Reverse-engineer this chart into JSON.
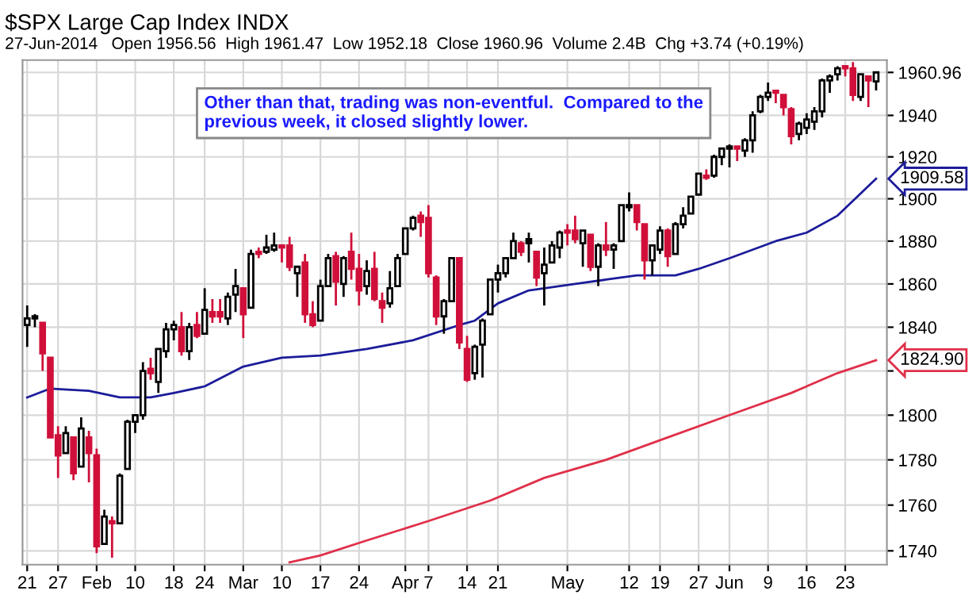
{
  "chart_data": {
    "type": "candlestick",
    "title": "$SPX Large Cap Index INDX",
    "subtitle": "27-Jun-2014   Open 1956.56  High 1961.47  Low 1952.18  Close 1960.96  Volume 2.4B  Chg +3.74 (+0.19%)",
    "categories": [
      "21",
      null,
      null,
      null,
      "27",
      null,
      null,
      null,
      null,
      "Feb",
      null,
      null,
      null,
      null,
      "10",
      null,
      null,
      null,
      null,
      "18",
      null,
      null,
      null,
      "24",
      null,
      null,
      null,
      null,
      "Mar",
      null,
      null,
      null,
      null,
      "10",
      null,
      null,
      null,
      null,
      "17",
      null,
      null,
      null,
      null,
      "24",
      null,
      null,
      null,
      null,
      null,
      "Apr",
      null,
      null,
      "7",
      null,
      null,
      null,
      null,
      "14",
      null,
      null,
      null,
      "21",
      null,
      null,
      null,
      null,
      null,
      null,
      null,
      null,
      "May",
      null,
      null,
      null,
      null,
      null,
      null,
      null,
      "12",
      null,
      null,
      null,
      "19",
      null,
      null,
      null,
      null,
      "27",
      null,
      null,
      null,
      "Jun",
      null,
      null,
      null,
      null,
      "9",
      null,
      null,
      null,
      null,
      "16",
      null,
      null,
      null,
      null,
      "23",
      null,
      null,
      null,
      null
    ],
    "ohlc": [
      [
        1841,
        1850,
        1831,
        1844
      ],
      [
        1844,
        1846,
        1840,
        1845
      ],
      [
        1842,
        1842,
        1820,
        1828
      ],
      [
        1826,
        1826,
        1790,
        1790
      ],
      [
        1791,
        1795,
        1772,
        1782
      ],
      [
        1783,
        1795,
        1783,
        1792
      ],
      [
        1790,
        1790,
        1771,
        1774
      ],
      [
        1777,
        1799,
        1777,
        1794
      ],
      [
        1790,
        1793,
        1770,
        1783
      ],
      [
        1782,
        1785,
        1739,
        1742
      ],
      [
        1743,
        1758,
        1743,
        1755
      ],
      [
        1753,
        1755,
        1737,
        1752
      ],
      [
        1752,
        1774,
        1752,
        1773
      ],
      [
        1776,
        1798,
        1776,
        1797
      ],
      [
        1797,
        1800,
        1792,
        1800
      ],
      [
        1800,
        1824,
        1798,
        1820
      ],
      [
        1821,
        1826,
        1816,
        1819
      ],
      [
        1815,
        1830,
        1810,
        1830
      ],
      [
        1829,
        1842,
        1826,
        1839
      ],
      [
        1839,
        1843,
        1834,
        1841
      ],
      [
        1840,
        1847,
        1827,
        1829
      ],
      [
        1829,
        1842,
        1825,
        1840
      ],
      [
        1841,
        1847,
        1835,
        1836
      ],
      [
        1837,
        1858,
        1837,
        1848
      ],
      [
        1847,
        1853,
        1842,
        1845
      ],
      [
        1847,
        1853,
        1842,
        1845
      ],
      [
        1844,
        1856,
        1841,
        1854
      ],
      [
        1855,
        1867,
        1847,
        1859
      ],
      [
        1858,
        1858,
        1835,
        1846
      ],
      [
        1849,
        1876,
        1849,
        1874
      ],
      [
        1875,
        1877,
        1872,
        1874
      ],
      [
        1875,
        1883,
        1874,
        1877
      ],
      [
        1876,
        1884,
        1875,
        1878
      ],
      [
        1878,
        1878,
        1870,
        1877
      ],
      [
        1878,
        1882,
        1866,
        1868
      ],
      [
        1865,
        1868,
        1854,
        1868
      ],
      [
        1870,
        1874,
        1842,
        1846
      ],
      [
        1846,
        1852,
        1840,
        1841
      ],
      [
        1843,
        1862,
        1843,
        1859
      ],
      [
        1859,
        1874,
        1859,
        1872
      ],
      [
        1873,
        1875,
        1850,
        1861
      ],
      [
        1860,
        1873,
        1854,
        1872
      ],
      [
        1875,
        1884,
        1862,
        1867
      ],
      [
        1867,
        1874,
        1850,
        1857
      ],
      [
        1859,
        1871,
        1855,
        1866
      ],
      [
        1867,
        1875,
        1852,
        1853
      ],
      [
        1852,
        1856,
        1842,
        1849
      ],
      [
        1851,
        1866,
        1849,
        1858
      ],
      [
        1859,
        1874,
        1859,
        1872
      ],
      [
        1874,
        1886,
        1874,
        1886
      ],
      [
        1886,
        1892,
        1885,
        1891
      ],
      [
        1892,
        1894,
        1882,
        1889
      ],
      [
        1891,
        1897,
        1863,
        1865
      ],
      [
        1863,
        1864,
        1841,
        1845
      ],
      [
        1845,
        1853,
        1837,
        1852
      ],
      [
        1852,
        1872,
        1852,
        1872
      ],
      [
        1872,
        1872,
        1830,
        1833
      ],
      [
        1830,
        1836,
        1815,
        1816
      ],
      [
        1819,
        1832,
        1816,
        1831
      ],
      [
        1832,
        1844,
        1817,
        1843
      ],
      [
        1846,
        1862,
        1846,
        1862
      ],
      [
        1862,
        1869,
        1856,
        1865
      ],
      [
        1865,
        1872,
        1863,
        1872
      ],
      [
        1872,
        1884,
        1872,
        1880
      ],
      [
        1879,
        1880,
        1873,
        1875
      ],
      [
        1881,
        1884,
        1870,
        1879
      ],
      [
        1875,
        1875,
        1859,
        1863
      ],
      [
        1865,
        1877,
        1850,
        1869
      ],
      [
        1870,
        1880,
        1870,
        1878
      ],
      [
        1877,
        1885,
        1872,
        1884
      ],
      [
        1885,
        1888,
        1878,
        1884
      ],
      [
        1885,
        1892,
        1879,
        1881
      ],
      [
        1879,
        1885,
        1868,
        1885
      ],
      [
        1883,
        1883,
        1866,
        1868
      ],
      [
        1868,
        1879,
        1859,
        1878
      ],
      [
        1878,
        1889,
        1873,
        1876
      ],
      [
        1876,
        1879,
        1867,
        1878
      ],
      [
        1880,
        1897,
        1880,
        1897
      ],
      [
        1896,
        1903,
        1894,
        1897
      ],
      [
        1897,
        1897,
        1885,
        1889
      ],
      [
        1888,
        1888,
        1862,
        1871
      ],
      [
        1871,
        1878,
        1864,
        1878
      ],
      [
        1876,
        1887,
        1874,
        1885
      ],
      [
        1885,
        1886,
        1868,
        1873
      ],
      [
        1874,
        1889,
        1874,
        1888
      ],
      [
        1888,
        1896,
        1886,
        1892
      ],
      [
        1893,
        1901,
        1893,
        1901
      ],
      [
        1902,
        1912,
        1902,
        1912
      ],
      [
        1911,
        1914,
        1909,
        1910
      ],
      [
        1911,
        1921,
        1910,
        1920
      ],
      [
        1920,
        1924,
        1916,
        1924
      ],
      [
        1924,
        1926,
        1915,
        1925
      ],
      [
        1925,
        1925,
        1918,
        1924
      ],
      [
        1923,
        1929,
        1920,
        1928
      ],
      [
        1928,
        1942,
        1922,
        1940
      ],
      [
        1942,
        1950,
        1941,
        1949
      ],
      [
        1949,
        1956,
        1947,
        1951
      ],
      [
        1952,
        1952,
        1946,
        1951
      ],
      [
        1950,
        1950,
        1940,
        1944
      ],
      [
        1943,
        1944,
        1926,
        1930
      ],
      [
        1931,
        1937,
        1928,
        1936
      ],
      [
        1934,
        1941,
        1931,
        1938
      ],
      [
        1937,
        1944,
        1933,
        1942
      ],
      [
        1942,
        1958,
        1939,
        1957
      ],
      [
        1957,
        1960,
        1951,
        1959
      ],
      [
        1960,
        1964,
        1957,
        1963
      ],
      [
        1964,
        1964,
        1959,
        1963
      ],
      [
        1963,
        1966,
        1947,
        1950
      ],
      [
        1949,
        1960,
        1947,
        1960
      ],
      [
        1959,
        1959,
        1944,
        1957
      ],
      [
        1956.56,
        1961.47,
        1952.18,
        1960.96
      ]
    ],
    "colors": [
      "#ffffff",
      "#ffffff",
      "#d0103a",
      "#d0103a",
      "#d0103a",
      "#ffffff",
      "#d0103a",
      "#ffffff",
      "#d0103a",
      "#d0103a",
      "#ffffff",
      "#d0103a",
      "#ffffff",
      "#ffffff",
      "#ffffff",
      "#ffffff",
      "#d0103a",
      "#ffffff",
      "#ffffff",
      "#ffffff",
      "#d0103a",
      "#ffffff",
      "#d0103a",
      "#ffffff",
      "#d0103a",
      "#d0103a",
      "#ffffff",
      "#ffffff",
      "#d0103a",
      "#ffffff",
      "#d0103a",
      "#ffffff",
      "#ffffff",
      "#d0103a",
      "#d0103a",
      "#ffffff",
      "#d0103a",
      "#d0103a",
      "#ffffff",
      "#ffffff",
      "#d0103a",
      "#ffffff",
      "#d0103a",
      "#d0103a",
      "#ffffff",
      "#d0103a",
      "#d0103a",
      "#ffffff",
      "#ffffff",
      "#ffffff",
      "#ffffff",
      "#d0103a",
      "#d0103a",
      "#d0103a",
      "#ffffff",
      "#ffffff",
      "#d0103a",
      "#d0103a",
      "#ffffff",
      "#ffffff",
      "#ffffff",
      "#ffffff",
      "#ffffff",
      "#ffffff",
      "#d0103a",
      "#000000",
      "#d0103a",
      "#ffffff",
      "#ffffff",
      "#ffffff",
      "#d0103a",
      "#d0103a",
      "#ffffff",
      "#d0103a",
      "#ffffff",
      "#d0103a",
      "#ffffff",
      "#ffffff",
      "#ffffff",
      "#d0103a",
      "#d0103a",
      "#ffffff",
      "#ffffff",
      "#d0103a",
      "#ffffff",
      "#ffffff",
      "#ffffff",
      "#ffffff",
      "#d0103a",
      "#ffffff",
      "#ffffff",
      "#ffffff",
      "#d0103a",
      "#ffffff",
      "#ffffff",
      "#ffffff",
      "#ffffff",
      "#d0103a",
      "#d0103a",
      "#d0103a",
      "#ffffff",
      "#ffffff",
      "#ffffff",
      "#ffffff",
      "#ffffff",
      "#ffffff",
      "#d0103a",
      "#d0103a",
      "#ffffff",
      "#d0103a",
      "#ffffff"
    ],
    "series": [
      {
        "type": "line",
        "color": "#1c1c9a",
        "values": [
          1808,
          null,
          null,
          1812,
          null,
          null,
          null,
          null,
          1811,
          null,
          null,
          null,
          1808,
          null,
          null,
          null,
          1808,
          null,
          null,
          1810,
          null,
          null,
          null,
          1813,
          null,
          null,
          null,
          null,
          1822,
          null,
          null,
          null,
          null,
          1826,
          null,
          null,
          null,
          null,
          1827,
          null,
          null,
          null,
          null,
          null,
          1830,
          null,
          null,
          null,
          null,
          null,
          1834,
          null,
          null,
          null,
          null,
          null,
          1841,
          null,
          1843,
          null,
          null,
          1851,
          null,
          null,
          null,
          1857,
          null,
          null,
          null,
          null,
          null,
          1860,
          null,
          null,
          null,
          1862,
          null,
          null,
          null,
          1864,
          null,
          null,
          null,
          null,
          1864,
          null,
          null,
          1867,
          null,
          null,
          null,
          1872,
          null,
          null,
          null,
          null,
          null,
          1880,
          null,
          null,
          null,
          1884,
          null,
          null,
          null,
          1892,
          null,
          null,
          null,
          null,
          1909.58
        ],
        "value_labels": [
          null,
          null,
          null,
          null,
          null,
          null,
          null,
          null,
          null,
          null,
          null,
          null,
          null,
          null,
          null,
          null,
          null,
          null,
          null,
          null,
          null,
          null,
          null,
          null,
          null,
          null,
          null,
          null,
          null,
          null,
          null,
          null,
          null,
          null,
          null,
          null,
          null,
          null,
          null,
          null,
          null,
          null,
          null,
          null,
          null,
          null,
          null,
          null,
          null,
          null,
          null,
          null,
          null,
          null,
          null,
          null,
          null,
          null,
          null,
          null,
          null,
          null,
          null,
          null,
          null,
          null,
          null,
          null,
          null,
          null,
          null,
          null,
          null,
          null,
          null,
          null,
          null,
          null,
          null,
          null,
          null,
          null,
          null,
          null,
          null,
          null,
          null,
          null,
          null,
          null,
          null,
          null,
          null,
          null,
          null,
          null,
          null,
          null,
          null,
          null,
          null,
          null,
          null,
          null,
          null,
          null,
          null,
          null,
          null,
          null,
          "1909.58"
        ]
      },
      {
        "type": "line",
        "color": "#e0304a",
        "values": [
          null,
          null,
          null,
          null,
          null,
          null,
          null,
          null,
          null,
          null,
          null,
          null,
          null,
          null,
          null,
          null,
          null,
          null,
          null,
          null,
          null,
          null,
          null,
          null,
          null,
          null,
          null,
          null,
          null,
          null,
          null,
          null,
          null,
          null,
          1735,
          null,
          null,
          null,
          1738,
          null,
          null,
          null,
          null,
          null,
          1744.5,
          null,
          null,
          null,
          null,
          null,
          null,
          null,
          1753,
          null,
          null,
          null,
          null,
          null,
          null,
          null,
          1762,
          null,
          null,
          null,
          null,
          null,
          null,
          1772,
          null,
          null,
          null,
          null,
          null,
          null,
          null,
          1780,
          null,
          null,
          null,
          null,
          null,
          null,
          null,
          1790,
          null,
          null,
          null,
          null,
          null,
          null,
          null,
          1800,
          null,
          null,
          null,
          null,
          null,
          null,
          null,
          1810,
          null,
          null,
          null,
          null,
          null,
          1819,
          null,
          null,
          null,
          null,
          1824.9
        ],
        "value_labels": [
          null,
          null,
          null,
          null,
          null,
          null,
          null,
          null,
          null,
          null,
          null,
          null,
          null,
          null,
          null,
          null,
          null,
          null,
          null,
          null,
          null,
          null,
          null,
          null,
          null,
          null,
          null,
          null,
          null,
          null,
          null,
          null,
          null,
          null,
          null,
          null,
          null,
          null,
          null,
          null,
          null,
          null,
          null,
          null,
          null,
          null,
          null,
          null,
          null,
          null,
          null,
          null,
          null,
          null,
          null,
          null,
          null,
          null,
          null,
          null,
          null,
          null,
          null,
          null,
          null,
          null,
          null,
          null,
          null,
          null,
          null,
          null,
          null,
          null,
          null,
          null,
          null,
          null,
          null,
          null,
          null,
          null,
          null,
          null,
          null,
          null,
          null,
          null,
          null,
          null,
          null,
          null,
          null,
          null,
          null,
          null,
          null,
          null,
          null,
          null,
          null,
          null,
          null,
          null,
          null,
          null,
          null,
          null,
          null,
          null,
          "1824.90"
        ]
      }
    ],
    "ylim": [
      1734,
      1967
    ],
    "yticks": [
      1740,
      1760,
      1780,
      1800,
      {
        "value": 1820,
        "label": null
      },
      1840,
      1860,
      1880,
      1900,
      1920,
      1940,
      {
        "value": 1960.96,
        "label": "1960.96"
      }
    ],
    "log": "y",
    "grid": true,
    "legend": false,
    "annotations": [
      "Other than that, trading was non-eventful.  Compared to the previous week, it closed slightly lower."
    ]
  }
}
